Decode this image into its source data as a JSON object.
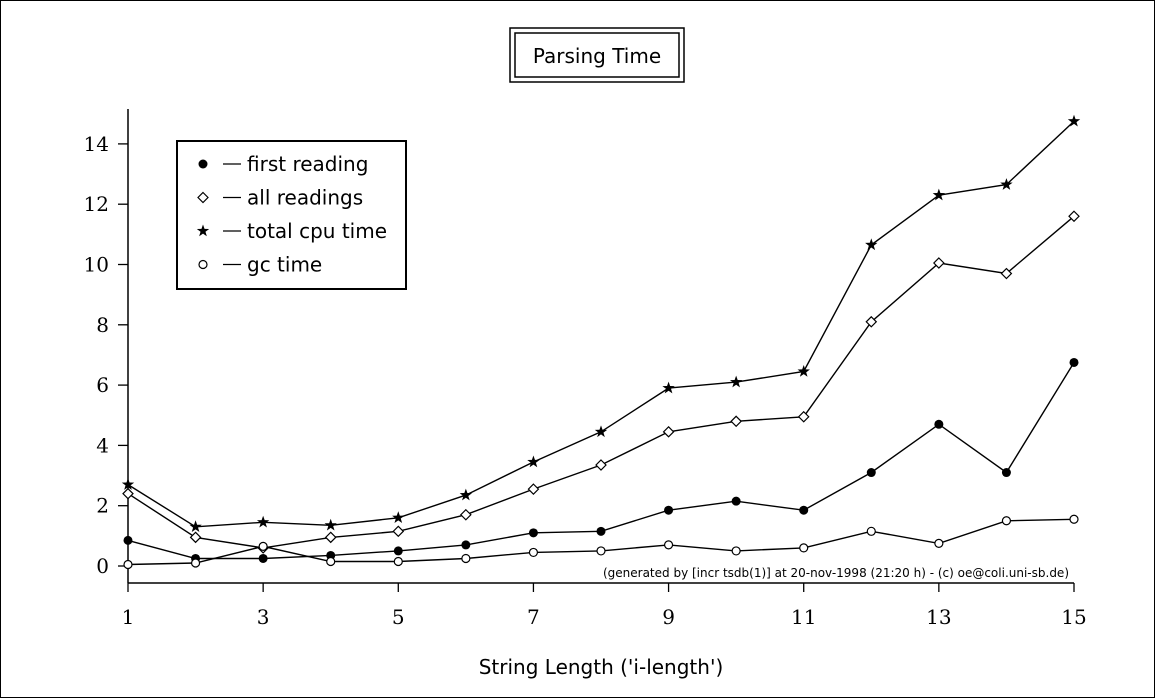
{
  "chart_data": {
    "type": "line",
    "title": "Parsing Time",
    "xlabel": "String Length ('i-length')",
    "ylabel": "",
    "xlim": [
      1,
      15
    ],
    "ylim": [
      0,
      15
    ],
    "xticks": [
      1,
      3,
      5,
      7,
      9,
      11,
      13,
      15
    ],
    "yticks": [
      0,
      2,
      4,
      6,
      8,
      10,
      12,
      14
    ],
    "grid": false,
    "legend_position": "top-left",
    "note": "(generated by [incr tsdb(1)] at 20-nov-1998 (21:20 h) - (c) oe@coli.uni-sb.de)",
    "x": [
      1,
      2,
      3,
      4,
      5,
      6,
      7,
      8,
      9,
      10,
      11,
      12,
      13,
      14,
      15
    ],
    "series": [
      {
        "name": "first reading",
        "marker": "filled-circle",
        "values": [
          0.85,
          0.25,
          0.25,
          0.35,
          0.5,
          0.7,
          1.1,
          1.15,
          1.85,
          2.15,
          1.85,
          3.1,
          4.7,
          3.1,
          6.75
        ]
      },
      {
        "name": "all readings",
        "marker": "diamond",
        "values": [
          2.4,
          0.95,
          0.6,
          0.95,
          1.15,
          1.7,
          2.55,
          3.35,
          4.45,
          4.8,
          4.95,
          8.1,
          10.05,
          9.7,
          11.6
        ]
      },
      {
        "name": "total cpu time",
        "marker": "star",
        "values": [
          2.7,
          1.3,
          1.45,
          1.35,
          1.6,
          2.35,
          3.45,
          4.45,
          5.9,
          6.1,
          6.45,
          10.65,
          12.3,
          12.65,
          14.75
        ]
      },
      {
        "name": "gc time",
        "marker": "open-circle",
        "values": [
          0.05,
          0.1,
          0.65,
          0.15,
          0.15,
          0.25,
          0.45,
          0.5,
          0.7,
          0.5,
          0.6,
          1.15,
          0.75,
          1.5,
          1.55
        ]
      }
    ]
  }
}
